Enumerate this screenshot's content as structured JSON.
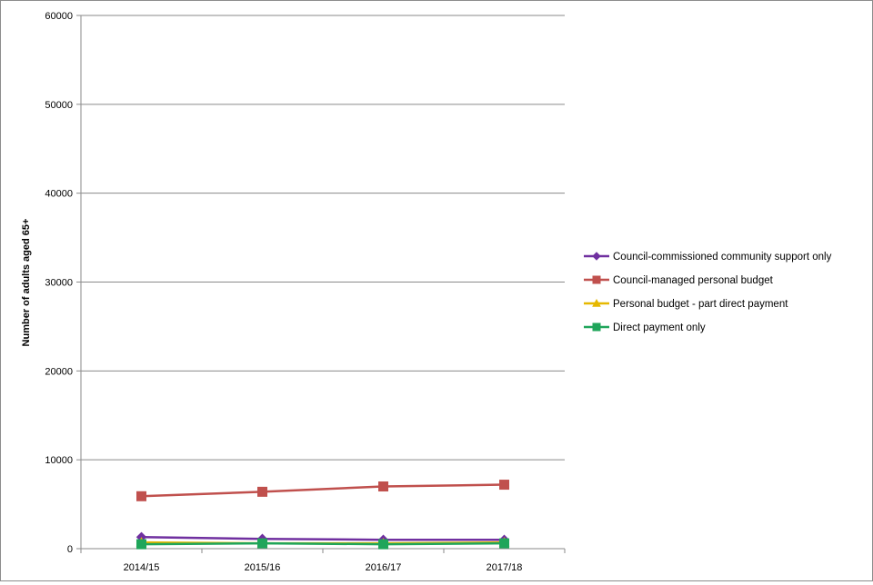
{
  "chart_data": {
    "type": "line",
    "title": "",
    "xlabel": "",
    "ylabel": "Number of adults aged 65+",
    "categories": [
      "2014/15",
      "2015/16",
      "2016/17",
      "2017/18"
    ],
    "ylim": [
      0,
      60000
    ],
    "yticks": [
      0,
      10000,
      20000,
      30000,
      40000,
      50000,
      60000
    ],
    "ytick_labels": [
      "0",
      "10000",
      "20000",
      "30000",
      "40000",
      "50000",
      "60000"
    ],
    "grid": true,
    "legend_position": "right",
    "series": [
      {
        "name": "Council-commissioned community support only",
        "values": [
          1300,
          1100,
          1000,
          1000
        ],
        "color": "#7030a0",
        "marker": "diamond"
      },
      {
        "name": "Council-managed personal budget",
        "values": [
          5900,
          6400,
          7000,
          7200
        ],
        "color": "#c0504d",
        "marker": "square"
      },
      {
        "name": "Personal budget - part direct payment",
        "values": [
          700,
          600,
          600,
          700
        ],
        "color": "#e6b800",
        "marker": "triangle"
      },
      {
        "name": "Direct payment only",
        "values": [
          500,
          600,
          500,
          600
        ],
        "color": "#1fa55a",
        "marker": "square"
      }
    ]
  }
}
